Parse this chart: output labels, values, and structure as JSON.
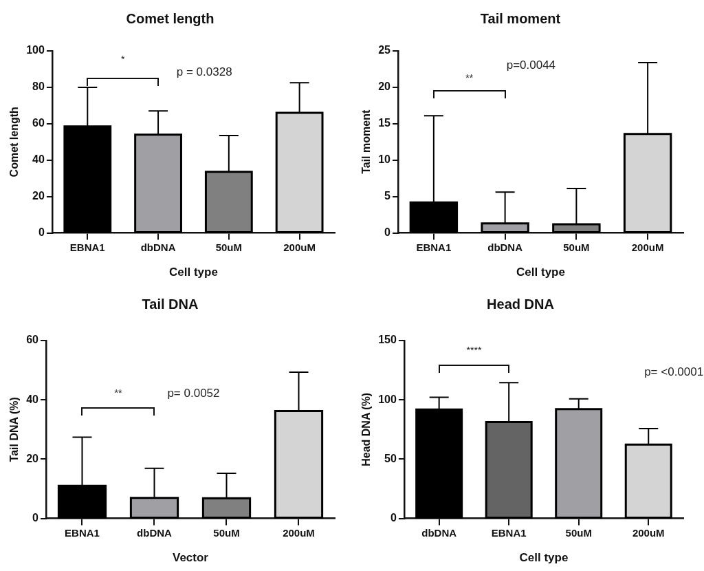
{
  "chart_data": [
    {
      "type": "bar",
      "title": "Comet length",
      "xlabel": "Cell type",
      "ylabel": "Comet length",
      "categories": [
        "EBNA1",
        "dbDNA",
        "50uM",
        "200uM"
      ],
      "values": [
        58.5,
        54,
        33.6,
        66
      ],
      "colors": [
        "#000000",
        "#a0a0a4",
        "#808080",
        "#d4d4d4"
      ],
      "errors": [
        [
          58.5,
          80
        ],
        [
          54,
          67
        ],
        [
          33.6,
          53.5
        ],
        [
          66,
          82.5
        ]
      ],
      "ylim": [
        0,
        100
      ],
      "yticks": [
        0,
        20,
        40,
        60,
        80,
        100
      ],
      "annotations": [
        "*",
        "p = 0.0328"
      ]
    },
    {
      "type": "bar",
      "title": "Tail moment",
      "xlabel": "Cell type",
      "ylabel": "Tail moment",
      "categories": [
        "EBNA1",
        "dbDNA",
        "50uM",
        "200uM"
      ],
      "values": [
        4.2,
        1.3,
        1.2,
        13.6
      ],
      "colors": [
        "#000000",
        "#a0a0a4",
        "#808080",
        "#d4d4d4"
      ],
      "errors": [
        [
          4.2,
          16.1
        ],
        [
          1.3,
          5.6
        ],
        [
          1.2,
          6.1
        ],
        [
          13.6,
          23.4
        ]
      ],
      "ylim": [
        0,
        25
      ],
      "yticks": [
        0,
        5,
        10,
        15,
        20,
        25
      ],
      "annotations": [
        "**",
        "p=0.0044"
      ]
    },
    {
      "type": "bar",
      "title": "Tail DNA",
      "xlabel": "Vector",
      "ylabel": "Tail DNA (%)",
      "categories": [
        "EBNA1",
        "dbDNA",
        "50uM",
        "200uM"
      ],
      "values": [
        11,
        6.9,
        6.8,
        36.2
      ],
      "colors": [
        "#000000",
        "#a0a0a4",
        "#808080",
        "#d4d4d4"
      ],
      "errors": [
        [
          11,
          27.4
        ],
        [
          6.9,
          16.9
        ],
        [
          6.8,
          15.2
        ],
        [
          36.2,
          49.3
        ]
      ],
      "ylim": [
        0,
        60
      ],
      "yticks": [
        0,
        20,
        40,
        60
      ],
      "annotations": [
        "**",
        "p= 0.0052"
      ]
    },
    {
      "type": "bar",
      "title": "Head DNA",
      "xlabel": "Cell type",
      "ylabel": "Head DNA (%)",
      "categories": [
        "dbDNA",
        "EBNA1",
        "50uM",
        "200uM"
      ],
      "values": [
        91.9,
        81.2,
        92.1,
        62.3
      ],
      "colors": [
        "#000000",
        "#646464",
        "#a0a0a4",
        "#d4d4d4"
      ],
      "errors": [
        [
          91.9,
          102.2
        ],
        [
          81.2,
          114.5
        ],
        [
          92.1,
          100.9
        ],
        [
          62.3,
          75.7
        ]
      ],
      "ylim": [
        0,
        150
      ],
      "yticks": [
        0,
        50,
        100,
        150
      ],
      "annotations": [
        "****",
        "p= <0.0001"
      ]
    }
  ]
}
